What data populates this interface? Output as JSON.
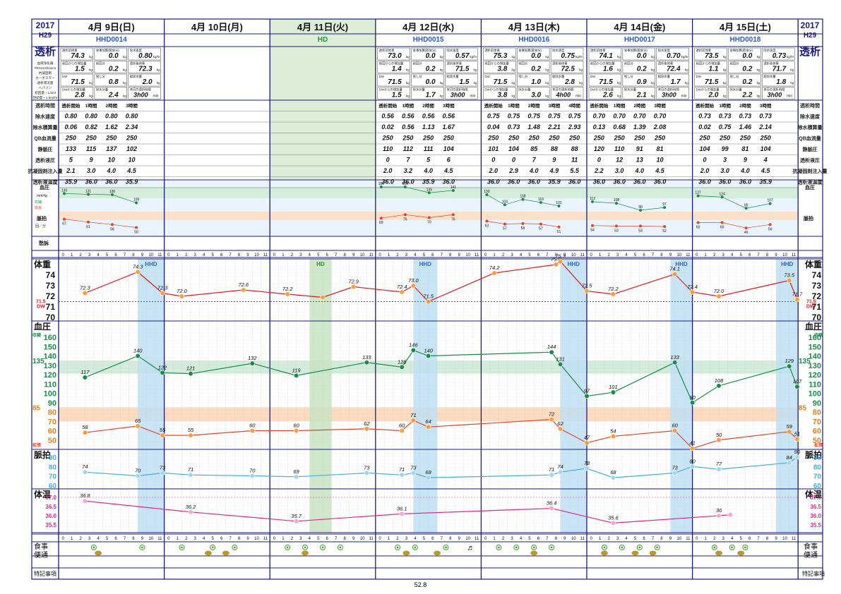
{
  "header": {
    "year_left": "2017",
    "era_left": "H29",
    "year_right": "2017",
    "era_right": "H29",
    "left_title": "透析",
    "right_title": "透析"
  },
  "days": [
    {
      "label": "4月 9日(日)",
      "id": "HHD0014",
      "bw_start": "74.3",
      "gain_meal": "0.0",
      "max_speed": "0.80",
      "prev_gain": "1.5",
      "prev_gain2": "0.2",
      "post_target": "72.3",
      "dw": "71.5",
      "remain": "0.8",
      "total_remove": "2.0",
      "dw_gain": "2.8",
      "dehyd": "2.4",
      "time": "3h00min",
      "rows": [
        [
          "0.80",
          "0.80",
          "0.80",
          "0.80"
        ],
        [
          "0.06",
          "0.82",
          "1.62",
          "2.34"
        ],
        [
          "250",
          "250",
          "250",
          "250"
        ],
        [
          "133",
          "115",
          "137",
          "102"
        ],
        [
          "5",
          "9",
          "10",
          "10"
        ],
        [
          "2.1",
          "3.0",
          "4.0",
          "4.5"
        ],
        [
          "35.9",
          "36.0",
          "36.0",
          "35.9"
        ]
      ],
      "bp_s": [
        "133",
        "131",
        "130",
        "109"
      ],
      "bp_d": [
        "67",
        "61",
        "56",
        "50"
      ]
    },
    {
      "label": "4月 10日(月)",
      "id": "",
      "rows": []
    },
    {
      "label": "4月 11日(火)",
      "id": "HD",
      "rows": []
    },
    {
      "label": "4月 12日(水)",
      "id": "HHD0015",
      "bw_start": "73.0",
      "gain_meal": "0.0",
      "max_speed": "0.57",
      "prev_gain": "1.4",
      "prev_gain2": "0.2",
      "post_target": "71.5",
      "dw": "71.5",
      "remain": "0.0",
      "total_remove": "1.5",
      "dw_gain": "1.5",
      "dehyd": "1.7",
      "time": "3h00min",
      "rows": [
        [
          "0.56",
          "0.56",
          "0.56",
          "0.56"
        ],
        [
          "0.02",
          "0.56",
          "1.13",
          "1.67"
        ],
        [
          "250",
          "250",
          "250",
          "250"
        ],
        [
          "110",
          "112",
          "111",
          "104"
        ],
        [
          "0",
          "7",
          "5",
          "6"
        ],
        [
          "2.0",
          "3.2",
          "4.0",
          "4.5"
        ],
        [
          "36.0",
          "36.0",
          "35.9",
          "36.0"
        ]
      ],
      "bp_s": [
        "150",
        "150",
        "135",
        "141"
      ],
      "bp_d": [
        "69",
        "76",
        "70",
        "76"
      ]
    },
    {
      "label": "4月 13日(木)",
      "id": "HHD0016",
      "bw_start": "75.3",
      "gain_meal": "0.0",
      "max_speed": "0.75",
      "prev_gain": "3.8",
      "prev_gain2": "0.2",
      "post_target": "72.5",
      "dw": "71.5",
      "remain": "1.0",
      "total_remove": "2.8",
      "dw_gain": "3.8",
      "dehyd": "3.0",
      "time": "4h00min",
      "rows": [
        [
          "0.75",
          "0.75",
          "0.75",
          "0.75",
          "0.75"
        ],
        [
          "0.04",
          "0.73",
          "1.48",
          "2.21",
          "2.93"
        ],
        [
          "250",
          "250",
          "250",
          "250",
          "250"
        ],
        [
          "101",
          "104",
          "85",
          "88",
          "88"
        ],
        [
          "0",
          "0",
          "7",
          "9",
          "11"
        ],
        [
          "2.0",
          "2.9",
          "4.0",
          "4.9",
          "5.5"
        ],
        [
          "36.0",
          "36.0",
          "36.0",
          "35.9",
          "36.0"
        ]
      ],
      "bp_s": [
        "130",
        "104",
        "118",
        "110",
        "101"
      ],
      "bp_d": [
        "63",
        "57",
        "58",
        "57",
        "51"
      ]
    },
    {
      "label": "4月 14日(金)",
      "id": "HHD0017",
      "bw_start": "74.1",
      "gain_meal": "0.0",
      "max_speed": "0.70",
      "prev_gain": "1.6",
      "prev_gain2": "0.2",
      "post_target": "72.4",
      "dw": "71.5",
      "remain": "0.9",
      "total_remove": "1.7",
      "dw_gain": "2.6",
      "dehyd": "2.1",
      "time": "3h00min",
      "rows": [
        [
          "0.70",
          "0.70",
          "0.70",
          "0.70"
        ],
        [
          "0.13",
          "0.68",
          "1.39",
          "2.08"
        ],
        [
          "250",
          "250",
          "250",
          "250"
        ],
        [
          "120",
          "110",
          "91",
          "81"
        ],
        [
          "0",
          "12",
          "13",
          "10"
        ],
        [
          "2.2",
          "3.0",
          "4.0",
          "4.5"
        ],
        [
          "36.0",
          "36.0",
          "36.0",
          "36.0"
        ]
      ],
      "bp_s": [
        "112",
        "108",
        "90",
        "97"
      ],
      "bp_d": [
        "54",
        "53",
        "53",
        "52"
      ]
    },
    {
      "label": "4月 15日(土)",
      "id": "HHD0018",
      "bw_start": "73.5",
      "gain_meal": "0.0",
      "max_speed": "0.73",
      "prev_gain": "1.1",
      "prev_gain2": "0.2",
      "post_target": "71.7",
      "dw": "71.5",
      "remain": "0.2",
      "total_remove": "1.8",
      "dw_gain": "2.0",
      "dehyd": "2.2",
      "time": "3h00min",
      "rows": [
        [
          "0.73",
          "0.73",
          "0.73",
          "0.73"
        ],
        [
          "0.02",
          "0.75",
          "1.46",
          "2.14"
        ],
        [
          "250",
          "250",
          "250",
          "250"
        ],
        [
          "104",
          "99",
          "81",
          "104"
        ],
        [
          "0",
          "3",
          "9",
          "4"
        ],
        [
          "2.0",
          "3.0",
          "4.0",
          "4.5"
        ],
        [
          "36.0",
          "36.0",
          "36.0",
          "35.9"
        ]
      ],
      "bp_s": [
        "127",
        "124",
        "95",
        "107"
      ],
      "bp_d": [
        "60",
        "60",
        "49",
        "56"
      ]
    }
  ],
  "summary_labels": {
    "bw_start": "透析前体重",
    "gain_meal": "食事加算(飲食分)",
    "max_speed": "除水速度",
    "prev_gain": "前回からの増加量",
    "prev_gain2": "前回分",
    "post_target": "透析後体重",
    "dw": "DW",
    "remain": "残し分",
    "total_remove": "総除水量",
    "dw_gain": "DWからの増加量",
    "dehyd": "除水分量",
    "time": "本日の透析時間",
    "time_prefix": "3h",
    "time_suffix": "min"
  },
  "left_panel_info": [
    "血液浄化器",
    "PES21SEαeco",
    "抗凝固剤",
    "カーボスター",
    "透析液流量",
    "ヘパリン",
    "初回量・1.5ml",
    "持続量・1.5ml/hr"
  ],
  "row_labels": [
    "透析時間",
    "除水速度",
    "除水積算量",
    "QB血流量",
    "静脈圧",
    "透析液圧",
    "抗凝固剤注入量",
    "透析液温度"
  ],
  "session_headers_4": [
    "透析開始",
    "1時間",
    "2時間",
    "3時間"
  ],
  "session_headers_5": [
    "透析開始",
    "1時間",
    "2時間",
    "3時間",
    "4時間"
  ],
  "bp_mini": {
    "label": "血圧",
    "unit": "mmHg",
    "sys": "収縮",
    "dia": "拡張",
    "pulse": "脈拍",
    "pulse_unit": "回／分",
    "complaint": "愁訴"
  },
  "main_labels": {
    "weight": "体重",
    "bp": "血圧",
    "pulse": "脈拍",
    "temp": "体温",
    "meal": "食事",
    "stool": "便通",
    "notes": "特記事項",
    "dw_label": "DW",
    "sys_short": "収縮",
    "dia_short": "拡張",
    "hd": "HD",
    "hhd": "HHD"
  },
  "axis": {
    "weight_ticks": [
      "74",
      "73",
      "72",
      "71",
      "70"
    ],
    "dw_value": "71.5",
    "bp_ticks": [
      "160",
      "150",
      "140",
      "130",
      "120",
      "110",
      "100",
      "90",
      "80",
      "70",
      "60",
      "50"
    ],
    "bp_upper_limit": "135",
    "bp_lower_limit": "85",
    "pulse_ticks": [
      "90",
      "80",
      "70",
      "60"
    ],
    "temp_ticks": [
      "37.0",
      "36.5",
      "36.0",
      "35.5"
    ]
  },
  "chart_data": {
    "type": "line",
    "x_unit": "hour of day (day index 0=4/9 … 6=4/15)",
    "weight": [
      {
        "d": 0,
        "h": 3,
        "v": 72.3,
        "label": "72.3"
      },
      {
        "d": 0,
        "h": 9,
        "v": 74.3,
        "label": "74.3"
      },
      {
        "d": 0,
        "h": 11.8,
        "v": 72.3,
        "label": "72.3"
      },
      {
        "d": 1,
        "h": 2,
        "v": 72.0,
        "label": "72.0"
      },
      {
        "d": 1,
        "h": 9,
        "v": 72.6,
        "label": "72.6"
      },
      {
        "d": 2,
        "h": 2,
        "v": 72.2,
        "label": "72.2"
      },
      {
        "d": 2,
        "h": 6,
        "v": 71.9,
        "label": ""
      },
      {
        "d": 2,
        "h": 9.5,
        "v": 72.9,
        "label": "72.9"
      },
      {
        "d": 3,
        "h": 3,
        "v": 72.4,
        "label": "72.4"
      },
      {
        "d": 3,
        "h": 4.3,
        "v": 73.0,
        "label": "73.0"
      },
      {
        "d": 3,
        "h": 6,
        "v": 71.5,
        "label": "71.5"
      },
      {
        "d": 4,
        "h": 1.5,
        "v": 74.2,
        "label": "74.2"
      },
      {
        "d": 4,
        "h": 8.5,
        "v": 75.0,
        "label": "75.0"
      },
      {
        "d": 4,
        "h": 9,
        "v": 75.3,
        "label": "75.3"
      },
      {
        "d": 4,
        "h": 12,
        "v": 72.5,
        "label": "72.5"
      },
      {
        "d": 5,
        "h": 3,
        "v": 72.2,
        "label": "72.2"
      },
      {
        "d": 5,
        "h": 10,
        "v": 74.1,
        "label": "74.1"
      },
      {
        "d": 5,
        "h": 12,
        "v": 72.4,
        "label": "72.4"
      },
      {
        "d": 6,
        "h": 3,
        "v": 72.0,
        "label": "72.0"
      },
      {
        "d": 6,
        "h": 11,
        "v": 73.5,
        "label": "73.5"
      },
      {
        "d": 6,
        "h": 11.9,
        "v": 71.7,
        "label": "71.7"
      }
    ],
    "bp_systolic": [
      {
        "d": 0,
        "h": 3,
        "v": 117
      },
      {
        "d": 0,
        "h": 9,
        "v": 140
      },
      {
        "d": 0,
        "h": 11.8,
        "v": 122
      },
      {
        "d": 1,
        "h": 3,
        "v": 121
      },
      {
        "d": 1,
        "h": 10,
        "v": 132
      },
      {
        "d": 2,
        "h": 3,
        "v": 119
      },
      {
        "d": 2,
        "h": 11,
        "v": 133
      },
      {
        "d": 3,
        "h": 3,
        "v": 128
      },
      {
        "d": 3,
        "h": 4.3,
        "v": 146
      },
      {
        "d": 3,
        "h": 6,
        "v": 140
      },
      {
        "d": 4,
        "h": 8,
        "v": 144
      },
      {
        "d": 4,
        "h": 9,
        "v": 131
      },
      {
        "d": 4,
        "h": 12,
        "v": 97
      },
      {
        "d": 5,
        "h": 3,
        "v": 101
      },
      {
        "d": 5,
        "h": 10,
        "v": 133
      },
      {
        "d": 5,
        "h": 12,
        "v": 90
      },
      {
        "d": 6,
        "h": 3,
        "v": 108
      },
      {
        "d": 6,
        "h": 11,
        "v": 129
      },
      {
        "d": 6,
        "h": 11.9,
        "v": 107
      }
    ],
    "bp_diastolic": [
      {
        "d": 0,
        "h": 3,
        "v": 58
      },
      {
        "d": 0,
        "h": 9,
        "v": 65
      },
      {
        "d": 0,
        "h": 11.8,
        "v": 55
      },
      {
        "d": 1,
        "h": 3,
        "v": 55
      },
      {
        "d": 1,
        "h": 10,
        "v": 60
      },
      {
        "d": 2,
        "h": 3,
        "v": 60
      },
      {
        "d": 2,
        "h": 11,
        "v": 62
      },
      {
        "d": 3,
        "h": 3,
        "v": 60
      },
      {
        "d": 3,
        "h": 4.3,
        "v": 71
      },
      {
        "d": 3,
        "h": 6,
        "v": 64
      },
      {
        "d": 4,
        "h": 8,
        "v": 72
      },
      {
        "d": 4,
        "h": 9,
        "v": 62
      },
      {
        "d": 4,
        "h": 12,
        "v": 47
      },
      {
        "d": 5,
        "h": 3,
        "v": 54
      },
      {
        "d": 5,
        "h": 10,
        "v": 60
      },
      {
        "d": 5,
        "h": 12,
        "v": 41
      },
      {
        "d": 6,
        "h": 3,
        "v": 50
      },
      {
        "d": 6,
        "h": 11,
        "v": 59
      },
      {
        "d": 6,
        "h": 11.9,
        "v": 51
      }
    ],
    "pulse": [
      {
        "d": 0,
        "h": 3,
        "v": 74
      },
      {
        "d": 0,
        "h": 9,
        "v": 70
      },
      {
        "d": 0,
        "h": 11.8,
        "v": 73
      },
      {
        "d": 1,
        "h": 3,
        "v": 71
      },
      {
        "d": 1,
        "h": 10,
        "v": 70
      },
      {
        "d": 2,
        "h": 3,
        "v": 69
      },
      {
        "d": 2,
        "h": 11,
        "v": 73
      },
      {
        "d": 3,
        "h": 3,
        "v": 71
      },
      {
        "d": 3,
        "h": 4.3,
        "v": 73
      },
      {
        "d": 3,
        "h": 6,
        "v": 68
      },
      {
        "d": 4,
        "h": 8,
        "v": 71
      },
      {
        "d": 4,
        "h": 9,
        "v": 74
      },
      {
        "d": 4,
        "h": 12,
        "v": 78
      },
      {
        "d": 5,
        "h": 3,
        "v": 68
      },
      {
        "d": 5,
        "h": 10,
        "v": 73
      },
      {
        "d": 5,
        "h": 12,
        "v": 80
      },
      {
        "d": 6,
        "h": 3,
        "v": 77
      },
      {
        "d": 6,
        "h": 11,
        "v": 84
      },
      {
        "d": 6,
        "h": 11.9,
        "v": 90
      }
    ],
    "temperature": [
      {
        "d": 0,
        "h": 3,
        "v": 36.8
      },
      {
        "d": 1,
        "h": 3,
        "v": 36.2
      },
      {
        "d": 2,
        "h": 3,
        "v": 35.7
      },
      {
        "d": 3,
        "h": 3,
        "v": 36.1
      },
      {
        "d": 4,
        "h": 8,
        "v": 36.4
      },
      {
        "d": 5,
        "h": 3,
        "v": 35.6
      },
      {
        "d": 6,
        "h": 3,
        "v": 36.0
      },
      {
        "d": 6,
        "h": 4.3,
        "v": 36.05
      }
    ],
    "hd_sessions": [
      {
        "d": 0,
        "start": 9,
        "end": 12,
        "label": "HHD"
      },
      {
        "d": 2,
        "start": 4.5,
        "end": 7,
        "label": "HD"
      },
      {
        "d": 3,
        "start": 4.3,
        "end": 7,
        "label": "HHD"
      },
      {
        "d": 4,
        "start": 9,
        "end": 12,
        "label": "HHD"
      },
      {
        "d": 5,
        "start": 9.5,
        "end": 12,
        "label": "HHD"
      },
      {
        "d": 6,
        "start": 9.5,
        "end": 12,
        "label": "HHD"
      }
    ],
    "meals": [
      [
        4,
        9.5
      ],
      [
        2,
        5.5,
        8
      ],
      [
        2,
        4,
        6,
        8
      ],
      [
        2.5,
        4.5,
        8
      ],
      [
        2,
        4,
        6,
        8
      ],
      [
        2,
        4,
        6,
        8
      ],
      [
        2.5,
        4.5,
        6
      ]
    ],
    "stools": [
      [
        4.5
      ],
      [
        5,
        7
      ],
      [
        4
      ],
      [
        3.5,
        7
      ],
      [
        6
      ],
      [
        2,
        5.5,
        7.5
      ],
      [
        3,
        5.5
      ]
    ],
    "music_note": {
      "d": 4,
      "h": -7.5
    }
  },
  "page_number": "52.8",
  "colors": {
    "navy": "#1c1c7a",
    "weight": "#e01b22",
    "marker": "#ff9d3b",
    "sys": "#198c48",
    "dia": "#e8432a",
    "pulse": "#45aee0",
    "temp": "#e0278a",
    "hd": "#bfe0f3"
  }
}
